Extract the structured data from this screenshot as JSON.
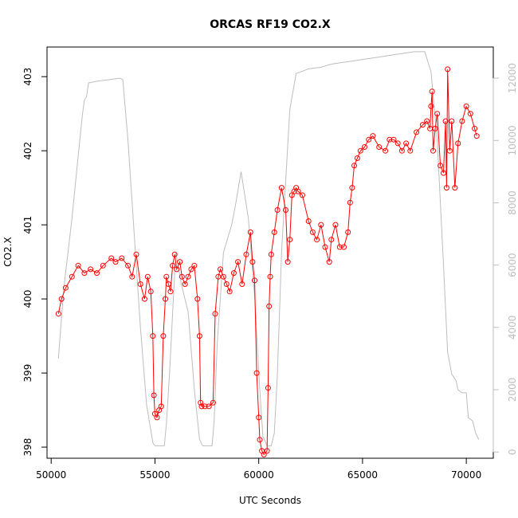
{
  "chart_data": {
    "type": "scatter",
    "title": "ORCAS RF19 CO2.X",
    "xlabel": "UTC Seconds",
    "ylabel": "CO2.X",
    "xlim": [
      49800,
      71300
    ],
    "ylim": [
      397.85,
      403.4
    ],
    "y2lim": [
      -200,
      13000
    ],
    "x_ticks": [
      50000,
      55000,
      60000,
      65000,
      70000
    ],
    "x_tick_labels": [
      "50000",
      "55000",
      "60000",
      "65000",
      "70000"
    ],
    "y_ticks": [
      398,
      399,
      400,
      401,
      402,
      403
    ],
    "y_tick_labels": [
      "398",
      "399",
      "400",
      "401",
      "402",
      "403"
    ],
    "y2_ticks": [
      0,
      2000,
      4000,
      6000,
      8000,
      10000,
      12000
    ],
    "y2_tick_labels": [
      "0",
      "2000",
      "4000",
      "6000",
      "8000",
      "10000",
      "12000"
    ],
    "grid": false,
    "colors": {
      "co2": "#ff0000",
      "altitude": "#bdbdbd"
    },
    "series": [
      {
        "role": "co2",
        "axis": "left",
        "style": "points-and-line",
        "x": [
          50350,
          50500,
          50700,
          51000,
          51300,
          51600,
          51900,
          52200,
          52500,
          52900,
          53100,
          53400,
          53700,
          53900,
          54100,
          54300,
          54500,
          54650,
          54800,
          54900,
          54950,
          55000,
          55100,
          55200,
          55300,
          55400,
          55500,
          55550,
          55650,
          55750,
          55850,
          55950,
          56050,
          56200,
          56300,
          56450,
          56600,
          56750,
          56900,
          57050,
          57150,
          57200,
          57250,
          57400,
          57600,
          57800,
          57900,
          58050,
          58150,
          58300,
          58450,
          58600,
          58800,
          59000,
          59200,
          59400,
          59600,
          59700,
          59800,
          59900,
          60000,
          60050,
          60150,
          60250,
          60400,
          60450,
          60500,
          60550,
          60600,
          60750,
          60900,
          61100,
          61300,
          61400,
          61500,
          61600,
          61700,
          61800,
          61900,
          62100,
          62400,
          62600,
          62800,
          63000,
          63200,
          63400,
          63500,
          63700,
          63900,
          64100,
          64300,
          64400,
          64500,
          64600,
          64750,
          64900,
          65100,
          65300,
          65500,
          65800,
          66100,
          66300,
          66500,
          66700,
          66900,
          67100,
          67300,
          67600,
          67900,
          68100,
          68250,
          68300,
          68350,
          68400,
          68500,
          68600,
          68750,
          68900,
          69000,
          69050,
          69100,
          69200,
          69300,
          69450,
          69600,
          69800,
          70000,
          70200,
          70400,
          70500
        ],
        "y": [
          399.8,
          400.0,
          400.15,
          400.3,
          400.45,
          400.35,
          400.4,
          400.35,
          400.45,
          400.55,
          400.5,
          400.55,
          400.45,
          400.3,
          400.6,
          400.2,
          400.0,
          400.3,
          400.1,
          399.5,
          398.7,
          398.45,
          398.4,
          398.5,
          398.55,
          399.5,
          400.0,
          400.3,
          400.2,
          400.1,
          400.45,
          400.6,
          400.4,
          400.5,
          400.3,
          400.2,
          400.3,
          400.4,
          400.45,
          400.0,
          399.5,
          398.6,
          398.55,
          398.55,
          398.55,
          398.6,
          399.8,
          400.3,
          400.4,
          400.3,
          400.2,
          400.1,
          400.35,
          400.5,
          400.2,
          400.6,
          400.9,
          400.5,
          400.25,
          399.0,
          398.4,
          398.1,
          397.95,
          397.9,
          397.95,
          398.8,
          399.9,
          400.3,
          400.6,
          400.9,
          401.2,
          401.5,
          401.2,
          400.5,
          400.8,
          401.4,
          401.45,
          401.5,
          401.45,
          401.4,
          401.05,
          400.9,
          400.8,
          401.0,
          400.7,
          400.5,
          400.8,
          401.0,
          400.7,
          400.7,
          400.9,
          401.3,
          401.5,
          401.8,
          401.9,
          402.0,
          402.05,
          402.15,
          402.2,
          402.05,
          402.0,
          402.15,
          402.15,
          402.1,
          402.0,
          402.1,
          402.0,
          402.25,
          402.35,
          402.4,
          402.3,
          402.6,
          402.8,
          402.0,
          402.3,
          402.5,
          401.8,
          401.7,
          402.4,
          401.5,
          403.1,
          402.0,
          402.4,
          401.5,
          402.1,
          402.4,
          402.6,
          402.5,
          402.3,
          402.2
        ]
      },
      {
        "role": "altitude",
        "axis": "right",
        "style": "line",
        "x": [
          50350,
          50600,
          51000,
          51300,
          51500,
          51600,
          51700,
          51800,
          52200,
          52800,
          53300,
          53450,
          53700,
          54000,
          54300,
          54600,
          54900,
          55000,
          55150,
          55450,
          55550,
          55700,
          56000,
          56300,
          56600,
          56900,
          57150,
          57300,
          57500,
          57750,
          57850,
          58000,
          58300,
          58700,
          58900,
          59150,
          59500,
          59800,
          60050,
          60200,
          60400,
          60600,
          60750,
          60900,
          61100,
          61500,
          61800,
          62000,
          62400,
          63000,
          63500,
          64000,
          64500,
          65000,
          65500,
          66000,
          66500,
          67000,
          67500,
          68000,
          68300,
          68600,
          68900,
          69100,
          69300,
          69500,
          69600,
          69800,
          69900,
          70000,
          70100,
          70300,
          70450,
          70600
        ],
        "y": [
          3000,
          5200,
          7500,
          9500,
          10800,
          11300,
          11400,
          11850,
          11900,
          11950,
          12000,
          11950,
          10000,
          7000,
          4000,
          1500,
          300,
          200,
          200,
          200,
          900,
          2500,
          6400,
          5300,
          4500,
          2000,
          400,
          200,
          200,
          200,
          1000,
          3500,
          6400,
          7300,
          8000,
          9000,
          7500,
          5000,
          2000,
          500,
          200,
          200,
          600,
          2500,
          6400,
          11000,
          12150,
          12200,
          12300,
          12350,
          12450,
          12500,
          12550,
          12600,
          12650,
          12700,
          12750,
          12800,
          12850,
          12850,
          12200,
          10000,
          6000,
          3200,
          2500,
          2300,
          2000,
          1900,
          1900,
          1900,
          1100,
          1000,
          600,
          400
        ]
      }
    ]
  }
}
